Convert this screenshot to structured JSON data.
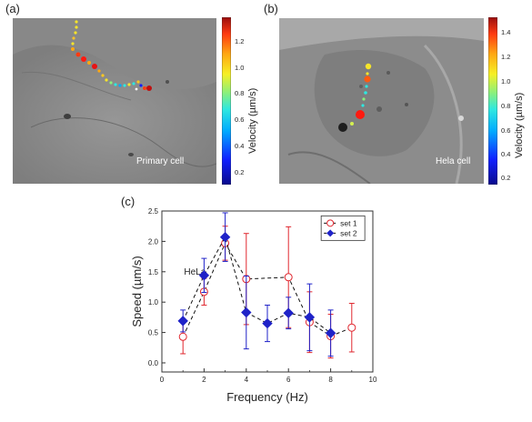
{
  "panels": {
    "a": {
      "label": "(a)",
      "caption": "Primary cell",
      "colorbar": {
        "title": "Velocity (µm/s)",
        "ticks": [
          "1.2",
          "1.0",
          "0.8",
          "0.6",
          "0.4",
          "0.2"
        ],
        "tick_values": [
          1.2,
          1.0,
          0.8,
          0.6,
          0.4,
          0.2
        ],
        "range": [
          0.1,
          1.35
        ]
      }
    },
    "b": {
      "label": "(b)",
      "caption": "Hela cell",
      "colorbar": {
        "title": "Velocity (µm/s)",
        "ticks": [
          "1.4",
          "1.2",
          "1.0",
          "0.8",
          "0.6",
          "0.4",
          "0.2"
        ],
        "tick_values": [
          1.4,
          1.2,
          1.0,
          0.8,
          0.6,
          0.4,
          0.2
        ],
        "range": [
          0.15,
          1.5
        ]
      }
    },
    "c": {
      "label": "(c)"
    }
  },
  "colors": {
    "set1": "#e0262e",
    "set2": "#1f22c8",
    "micrograph_bg": "#8a8a8a",
    "colormap": [
      "#0a0a8c",
      "#1020ff",
      "#00aaff",
      "#2ee8e0",
      "#8cf07a",
      "#f6f024",
      "#ffa812",
      "#ff3a10",
      "#9a0e0e"
    ]
  },
  "chart_data": {
    "type": "line",
    "xlabel": "Frequency (Hz)",
    "ylabel": "Speed (µm/s)",
    "xlim": [
      0,
      10
    ],
    "ylim": [
      -0.15,
      2.5
    ],
    "xticks": [
      0,
      2,
      4,
      6,
      8,
      10
    ],
    "yticks": [
      0.0,
      0.5,
      1.0,
      1.5,
      2.0,
      2.5
    ],
    "ytick_labels": [
      "0.0",
      "0.5",
      "1.0",
      "1.5",
      "2.0",
      "2.5"
    ],
    "annotation": "HeLa",
    "legend_position": "top-right",
    "grid": false,
    "series": [
      {
        "name": "set 1",
        "marker": "open-circle",
        "line": "dashed",
        "color": "#e0262e",
        "x": [
          1,
          2,
          3,
          4,
          6,
          7,
          8,
          9
        ],
        "y": [
          0.43,
          1.17,
          1.97,
          1.38,
          1.41,
          0.67,
          0.44,
          0.58
        ],
        "err": [
          0.28,
          0.22,
          0.28,
          0.75,
          0.83,
          0.5,
          0.36,
          0.4
        ]
      },
      {
        "name": "set 2",
        "marker": "filled-diamond",
        "line": "dashed",
        "color": "#1f22c8",
        "x": [
          1,
          2,
          3,
          4,
          5,
          6,
          7,
          8
        ],
        "y": [
          0.69,
          1.44,
          2.07,
          0.83,
          0.65,
          0.82,
          0.75,
          0.49
        ],
        "err": [
          0.18,
          0.28,
          0.4,
          0.6,
          0.3,
          0.26,
          0.55,
          0.38
        ]
      }
    ]
  }
}
